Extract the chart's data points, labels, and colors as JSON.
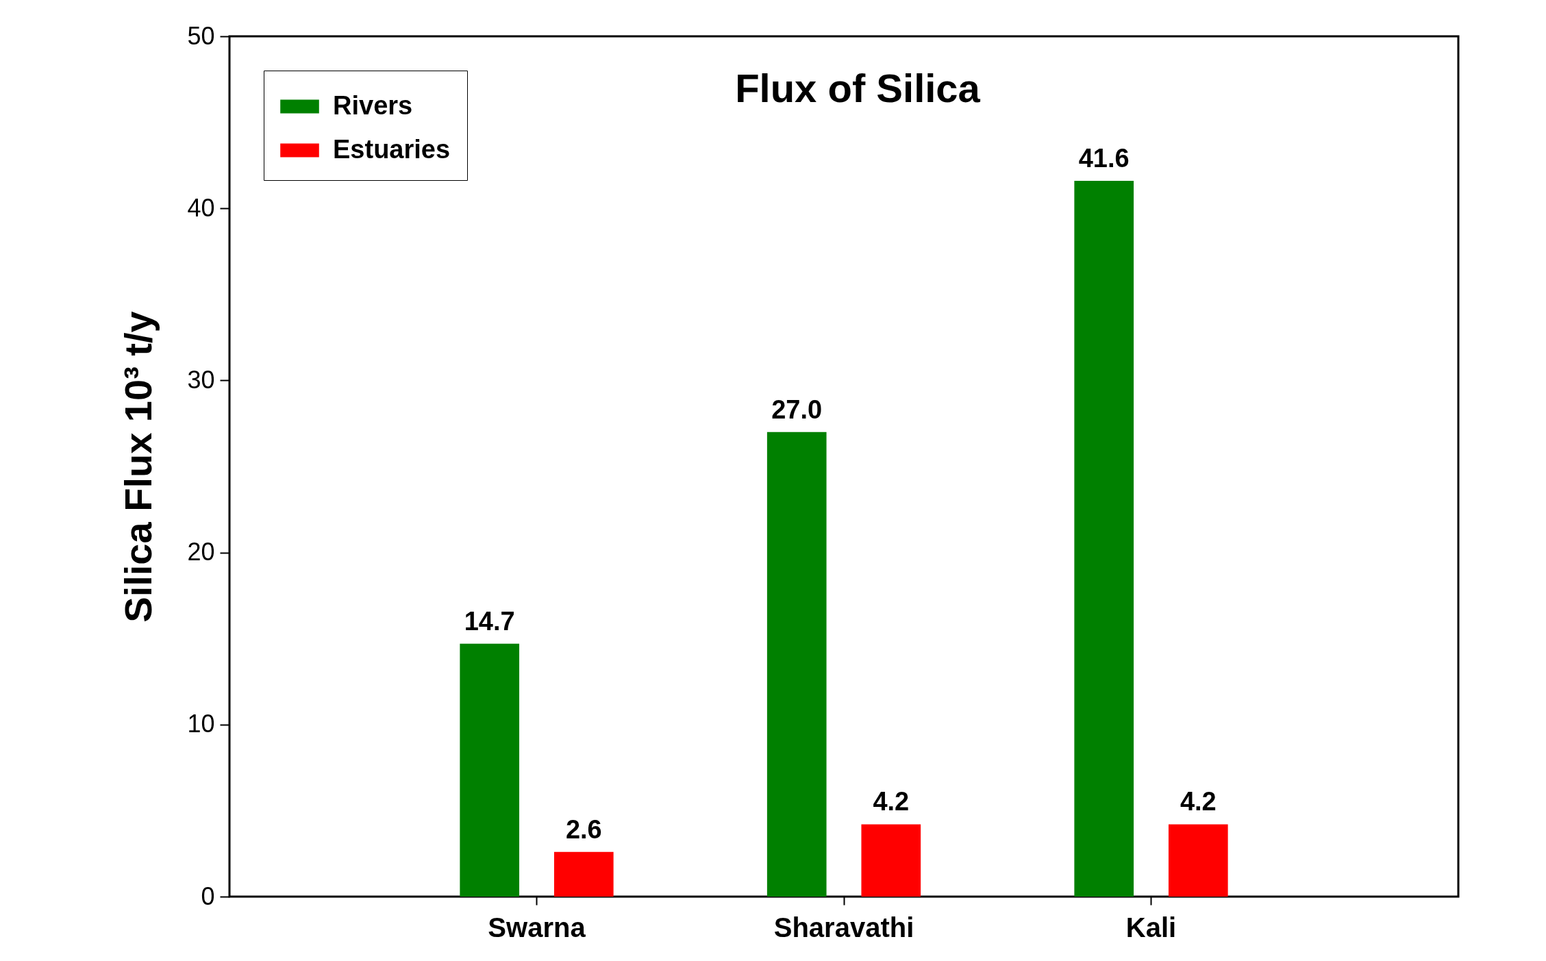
{
  "chart_data": {
    "type": "bar",
    "title": "Flux of Silica",
    "ylabel": "Silica Flux 10³ t/y",
    "categories": [
      "Swarna",
      "Sharavathi",
      "Kali"
    ],
    "series": [
      {
        "name": "Rivers",
        "color": "#008000",
        "values": [
          14.7,
          27.0,
          41.6
        ],
        "value_labels": [
          "14.7",
          "27.0",
          "41.6"
        ]
      },
      {
        "name": "Estuaries",
        "color": "#ff0000",
        "values": [
          2.6,
          4.2,
          4.2
        ],
        "value_labels": [
          "2.6",
          "4.2",
          "4.2"
        ]
      }
    ],
    "ylim": [
      0,
      50
    ],
    "yticks": [
      0,
      10,
      20,
      30,
      40,
      50
    ],
    "legend": "top left"
  }
}
